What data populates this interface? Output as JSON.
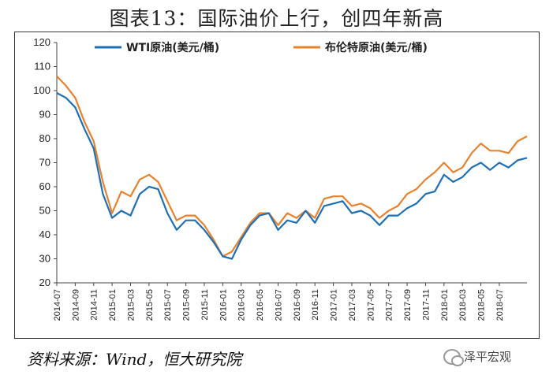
{
  "title": "图表13：国际油价上行，创四年新高",
  "source": "资料来源：Wind，恒大研究院",
  "watermark": "泽平宏观",
  "chart_data": {
    "type": "line",
    "title": "图表13：国际油价上行，创四年新高",
    "ylim": [
      20,
      120
    ],
    "yticks": [
      20,
      30,
      40,
      50,
      60,
      70,
      80,
      90,
      100,
      110,
      120
    ],
    "xlim": [
      "2014-07",
      "2018-10"
    ],
    "xticks": [
      "2014-07",
      "2014-09",
      "2014-11",
      "2015-01",
      "2015-03",
      "2015-05",
      "2015-07",
      "2015-09",
      "2015-11",
      "2016-01",
      "2016-03",
      "2016-05",
      "2016-07",
      "2016-09",
      "2016-11",
      "2017-01",
      "2017-03",
      "2017-05",
      "2017-07",
      "2017-09",
      "2017-11",
      "2018-01",
      "2018-03",
      "2018-05",
      "2018-07"
    ],
    "grid": false,
    "legend": "top",
    "series": [
      {
        "name": "WTI原油(美元/桶)",
        "color": "#1f6fb5",
        "points": [
          [
            "2014-07",
            99
          ],
          [
            "2014-08",
            97
          ],
          [
            "2014-09",
            93
          ],
          [
            "2014-10",
            84
          ],
          [
            "2014-11",
            76
          ],
          [
            "2014-12",
            57
          ],
          [
            "2015-01",
            47
          ],
          [
            "2015-02",
            50
          ],
          [
            "2015-03",
            48
          ],
          [
            "2015-04",
            57
          ],
          [
            "2015-05",
            60
          ],
          [
            "2015-06",
            59
          ],
          [
            "2015-07",
            49
          ],
          [
            "2015-08",
            42
          ],
          [
            "2015-09",
            46
          ],
          [
            "2015-10",
            46
          ],
          [
            "2015-11",
            42
          ],
          [
            "2015-12",
            37
          ],
          [
            "2016-01",
            31
          ],
          [
            "2016-02",
            30
          ],
          [
            "2016-03",
            38
          ],
          [
            "2016-04",
            44
          ],
          [
            "2016-05",
            48
          ],
          [
            "2016-06",
            49
          ],
          [
            "2016-07",
            42
          ],
          [
            "2016-08",
            46
          ],
          [
            "2016-09",
            45
          ],
          [
            "2016-10",
            50
          ],
          [
            "2016-11",
            45
          ],
          [
            "2016-12",
            52
          ],
          [
            "2017-01",
            53
          ],
          [
            "2017-02",
            54
          ],
          [
            "2017-03",
            49
          ],
          [
            "2017-04",
            50
          ],
          [
            "2017-05",
            48
          ],
          [
            "2017-06",
            44
          ],
          [
            "2017-07",
            48
          ],
          [
            "2017-08",
            48
          ],
          [
            "2017-09",
            51
          ],
          [
            "2017-10",
            53
          ],
          [
            "2017-11",
            57
          ],
          [
            "2017-12",
            58
          ],
          [
            "2018-01",
            65
          ],
          [
            "2018-02",
            62
          ],
          [
            "2018-03",
            64
          ],
          [
            "2018-04",
            68
          ],
          [
            "2018-05",
            70
          ],
          [
            "2018-06",
            67
          ],
          [
            "2018-07",
            70
          ],
          [
            "2018-08",
            68
          ],
          [
            "2018-09",
            71
          ],
          [
            "2018-10",
            72
          ]
        ]
      },
      {
        "name": "布伦特原油(美元/桶)",
        "color": "#e8822e",
        "points": [
          [
            "2014-07",
            106
          ],
          [
            "2014-08",
            102
          ],
          [
            "2014-09",
            97
          ],
          [
            "2014-10",
            87
          ],
          [
            "2014-11",
            79
          ],
          [
            "2014-12",
            62
          ],
          [
            "2015-01",
            49
          ],
          [
            "2015-02",
            58
          ],
          [
            "2015-03",
            56
          ],
          [
            "2015-04",
            63
          ],
          [
            "2015-05",
            65
          ],
          [
            "2015-06",
            62
          ],
          [
            "2015-07",
            54
          ],
          [
            "2015-08",
            46
          ],
          [
            "2015-09",
            48
          ],
          [
            "2015-10",
            48
          ],
          [
            "2015-11",
            44
          ],
          [
            "2015-12",
            38
          ],
          [
            "2016-01",
            31
          ],
          [
            "2016-02",
            33
          ],
          [
            "2016-03",
            39
          ],
          [
            "2016-04",
            45
          ],
          [
            "2016-05",
            49
          ],
          [
            "2016-06",
            49
          ],
          [
            "2016-07",
            44
          ],
          [
            "2016-08",
            49
          ],
          [
            "2016-09",
            47
          ],
          [
            "2016-10",
            50
          ],
          [
            "2016-11",
            47
          ],
          [
            "2016-12",
            55
          ],
          [
            "2017-01",
            56
          ],
          [
            "2017-02",
            56
          ],
          [
            "2017-03",
            52
          ],
          [
            "2017-04",
            53
          ],
          [
            "2017-05",
            51
          ],
          [
            "2017-06",
            47
          ],
          [
            "2017-07",
            50
          ],
          [
            "2017-08",
            52
          ],
          [
            "2017-09",
            57
          ],
          [
            "2017-10",
            59
          ],
          [
            "2017-11",
            63
          ],
          [
            "2017-12",
            66
          ],
          [
            "2018-01",
            70
          ],
          [
            "2018-02",
            66
          ],
          [
            "2018-03",
            68
          ],
          [
            "2018-04",
            74
          ],
          [
            "2018-05",
            78
          ],
          [
            "2018-06",
            75
          ],
          [
            "2018-07",
            75
          ],
          [
            "2018-08",
            74
          ],
          [
            "2018-09",
            79
          ],
          [
            "2018-10",
            81
          ]
        ]
      }
    ]
  }
}
